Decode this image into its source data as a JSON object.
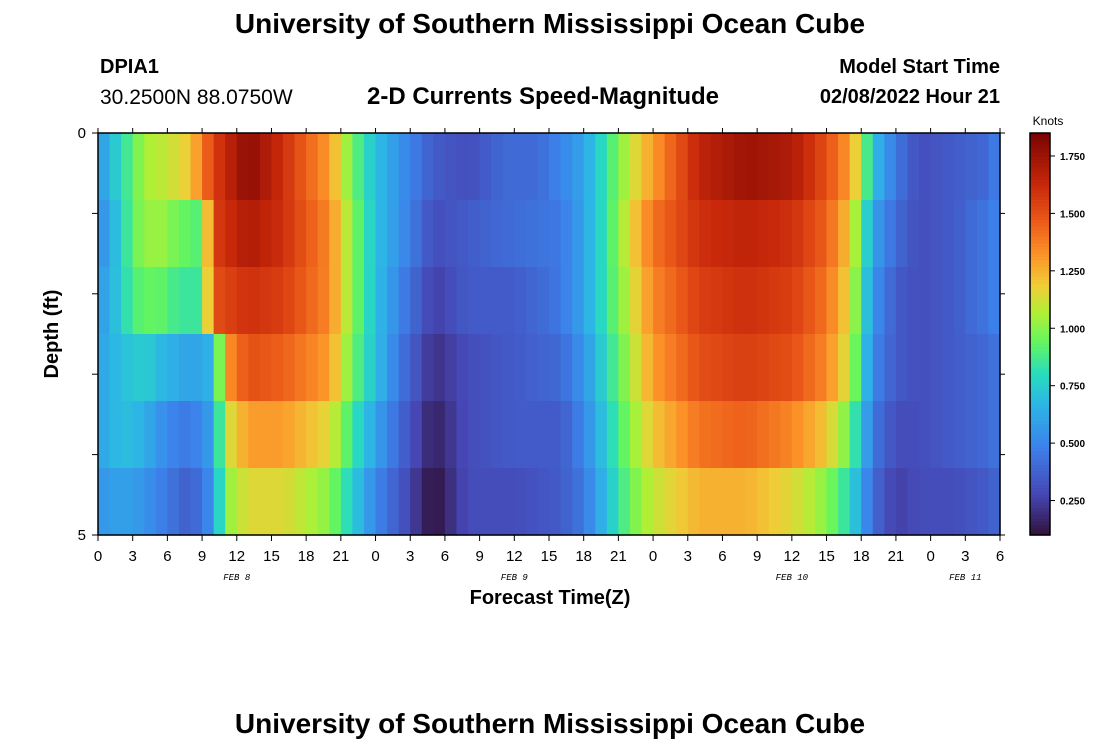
{
  "header": {
    "title": "University of Southern Mississippi Ocean Cube",
    "station_id": "DPIA1",
    "coordinates": "30.2500N  88.0750W",
    "subtitle": "2-D Currents Speed-Magnitude",
    "model_start_label": "Model Start Time",
    "model_start_value": "02/08/2022 Hour 21"
  },
  "footer": {
    "title": "University of Southern Mississippi Ocean Cube"
  },
  "chart_data": {
    "type": "heatmap",
    "title": "2-D Currents Speed-Magnitude",
    "xlabel": "Forecast Time(Z)",
    "ylabel": "Depth (ft)",
    "x_tick_labels": [
      "0",
      "3",
      "6",
      "9",
      "12",
      "15",
      "18",
      "21",
      "0",
      "3",
      "6",
      "9",
      "12",
      "15",
      "18",
      "21",
      "0",
      "3",
      "6",
      "9",
      "12",
      "15",
      "18",
      "21",
      "0",
      "3",
      "6"
    ],
    "date_labels": [
      {
        "label": "FEB 8",
        "hour_index": 12
      },
      {
        "label": "FEB 9",
        "hour_index": 36
      },
      {
        "label": "FEB 10",
        "hour_index": 60
      },
      {
        "label": "FEB 11",
        "hour_index": 75
      }
    ],
    "x_range_hours": [
      0,
      78
    ],
    "y_tick_labels": [
      "0",
      "5"
    ],
    "ylim": [
      0,
      5
    ],
    "depth_levels_ft": [
      0,
      1,
      2,
      3,
      4,
      5
    ],
    "colorbar": {
      "label": "Knots",
      "range": [
        0.1,
        1.85
      ],
      "ticks": [
        "0.250",
        "0.500",
        "0.750",
        "1.000",
        "1.250",
        "1.500",
        "1.750"
      ],
      "tick_values": [
        0.25,
        0.5,
        0.75,
        1.0,
        1.25,
        1.5,
        1.75
      ]
    },
    "speed_profiles_knots": [
      {
        "depth_band": "0-1 ft",
        "points": [
          [
            0,
            0.55
          ],
          [
            2,
            0.8
          ],
          [
            4,
            1.05
          ],
          [
            6,
            1.1
          ],
          [
            8,
            1.2
          ],
          [
            10,
            1.55
          ],
          [
            13,
            1.8
          ],
          [
            16,
            1.6
          ],
          [
            20,
            1.3
          ],
          [
            22,
            0.95
          ],
          [
            24,
            0.7
          ],
          [
            26,
            0.55
          ],
          [
            29,
            0.35
          ],
          [
            32,
            0.3
          ],
          [
            35,
            0.4
          ],
          [
            38,
            0.4
          ],
          [
            40,
            0.5
          ],
          [
            42,
            0.6
          ],
          [
            44,
            0.85
          ],
          [
            46,
            1.1
          ],
          [
            48,
            1.3
          ],
          [
            52,
            1.65
          ],
          [
            56,
            1.75
          ],
          [
            60,
            1.7
          ],
          [
            63,
            1.5
          ],
          [
            65,
            1.3
          ],
          [
            66,
            1.05
          ],
          [
            67,
            0.7
          ],
          [
            69,
            0.45
          ],
          [
            71,
            0.3
          ],
          [
            74,
            0.35
          ],
          [
            77,
            0.4
          ],
          [
            78,
            0.5
          ]
        ]
      },
      {
        "depth_band": "1-2 ft",
        "points": [
          [
            0,
            0.5
          ],
          [
            2,
            0.75
          ],
          [
            3,
            0.95
          ],
          [
            5,
            1.05
          ],
          [
            7,
            0.95
          ],
          [
            9,
            0.9
          ],
          [
            10,
            1.55
          ],
          [
            13,
            1.7
          ],
          [
            16,
            1.6
          ],
          [
            20,
            1.35
          ],
          [
            22,
            1.0
          ],
          [
            24,
            0.7
          ],
          [
            26,
            0.55
          ],
          [
            29,
            0.3
          ],
          [
            32,
            0.35
          ],
          [
            35,
            0.4
          ],
          [
            40,
            0.45
          ],
          [
            42,
            0.6
          ],
          [
            44,
            0.85
          ],
          [
            46,
            1.15
          ],
          [
            48,
            1.4
          ],
          [
            52,
            1.6
          ],
          [
            56,
            1.65
          ],
          [
            60,
            1.6
          ],
          [
            63,
            1.45
          ],
          [
            65,
            1.2
          ],
          [
            66,
            0.9
          ],
          [
            67,
            0.6
          ],
          [
            69,
            0.4
          ],
          [
            71,
            0.3
          ],
          [
            74,
            0.35
          ],
          [
            77,
            0.45
          ],
          [
            78,
            0.5
          ]
        ]
      },
      {
        "depth_band": "2-3 ft",
        "points": [
          [
            0,
            0.55
          ],
          [
            2,
            0.75
          ],
          [
            3,
            0.9
          ],
          [
            5,
            0.95
          ],
          [
            7,
            0.85
          ],
          [
            9,
            0.85
          ],
          [
            10,
            1.5
          ],
          [
            13,
            1.6
          ],
          [
            16,
            1.55
          ],
          [
            20,
            1.35
          ],
          [
            22,
            1.0
          ],
          [
            24,
            0.7
          ],
          [
            26,
            0.5
          ],
          [
            29,
            0.25
          ],
          [
            32,
            0.35
          ],
          [
            36,
            0.35
          ],
          [
            40,
            0.45
          ],
          [
            42,
            0.6
          ],
          [
            44,
            0.85
          ],
          [
            46,
            1.1
          ],
          [
            48,
            1.35
          ],
          [
            52,
            1.55
          ],
          [
            56,
            1.6
          ],
          [
            60,
            1.55
          ],
          [
            63,
            1.4
          ],
          [
            65,
            1.15
          ],
          [
            66,
            0.85
          ],
          [
            67,
            0.55
          ],
          [
            69,
            0.35
          ],
          [
            71,
            0.3
          ],
          [
            74,
            0.35
          ],
          [
            77,
            0.45
          ],
          [
            78,
            0.5
          ]
        ]
      },
      {
        "depth_band": "3-4 ft",
        "points": [
          [
            0,
            0.6
          ],
          [
            2,
            0.7
          ],
          [
            4,
            0.75
          ],
          [
            6,
            0.65
          ],
          [
            8,
            0.6
          ],
          [
            10,
            0.65
          ],
          [
            11,
            1.3
          ],
          [
            13,
            1.5
          ],
          [
            16,
            1.45
          ],
          [
            20,
            1.3
          ],
          [
            22,
            0.95
          ],
          [
            24,
            0.7
          ],
          [
            26,
            0.45
          ],
          [
            29,
            0.2
          ],
          [
            32,
            0.3
          ],
          [
            36,
            0.35
          ],
          [
            40,
            0.4
          ],
          [
            42,
            0.55
          ],
          [
            44,
            0.8
          ],
          [
            46,
            1.05
          ],
          [
            48,
            1.3
          ],
          [
            52,
            1.5
          ],
          [
            56,
            1.55
          ],
          [
            60,
            1.5
          ],
          [
            63,
            1.35
          ],
          [
            65,
            1.1
          ],
          [
            66,
            0.8
          ],
          [
            67,
            0.5
          ],
          [
            69,
            0.35
          ],
          [
            71,
            0.3
          ],
          [
            74,
            0.35
          ],
          [
            77,
            0.4
          ],
          [
            78,
            0.45
          ]
        ]
      },
      {
        "depth_band": "4-5 ft",
        "points": [
          [
            0,
            0.6
          ],
          [
            2,
            0.7
          ],
          [
            4,
            0.65
          ],
          [
            6,
            0.5
          ],
          [
            8,
            0.45
          ],
          [
            10,
            0.6
          ],
          [
            11,
            1.1
          ],
          [
            13,
            1.3
          ],
          [
            16,
            1.3
          ],
          [
            20,
            1.15
          ],
          [
            22,
            0.85
          ],
          [
            24,
            0.6
          ],
          [
            26,
            0.4
          ],
          [
            29,
            0.15
          ],
          [
            32,
            0.3
          ],
          [
            36,
            0.35
          ],
          [
            40,
            0.35
          ],
          [
            42,
            0.5
          ],
          [
            44,
            0.75
          ],
          [
            46,
            1.0
          ],
          [
            48,
            1.2
          ],
          [
            52,
            1.4
          ],
          [
            56,
            1.45
          ],
          [
            60,
            1.35
          ],
          [
            63,
            1.2
          ],
          [
            65,
            0.95
          ],
          [
            66,
            0.7
          ],
          [
            67,
            0.45
          ],
          [
            69,
            0.3
          ],
          [
            71,
            0.3
          ],
          [
            74,
            0.35
          ],
          [
            77,
            0.4
          ],
          [
            78,
            0.45
          ]
        ]
      },
      {
        "depth_band": "5 ft",
        "points": [
          [
            0,
            0.55
          ],
          [
            2,
            0.6
          ],
          [
            4,
            0.55
          ],
          [
            6,
            0.45
          ],
          [
            8,
            0.35
          ],
          [
            10,
            0.55
          ],
          [
            11,
            1.0
          ],
          [
            13,
            1.15
          ],
          [
            16,
            1.15
          ],
          [
            20,
            1.0
          ],
          [
            22,
            0.75
          ],
          [
            24,
            0.5
          ],
          [
            26,
            0.35
          ],
          [
            29,
            0.1
          ],
          [
            32,
            0.3
          ],
          [
            36,
            0.3
          ],
          [
            40,
            0.35
          ],
          [
            42,
            0.45
          ],
          [
            44,
            0.7
          ],
          [
            46,
            0.95
          ],
          [
            48,
            1.1
          ],
          [
            52,
            1.25
          ],
          [
            56,
            1.25
          ],
          [
            60,
            1.15
          ],
          [
            63,
            1.0
          ],
          [
            65,
            0.8
          ],
          [
            66,
            0.6
          ],
          [
            67,
            0.4
          ],
          [
            69,
            0.25
          ],
          [
            71,
            0.3
          ],
          [
            74,
            0.3
          ],
          [
            77,
            0.35
          ],
          [
            78,
            0.4
          ]
        ]
      }
    ]
  }
}
